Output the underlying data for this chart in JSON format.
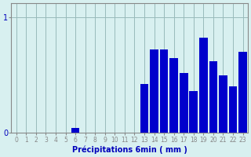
{
  "values": [
    0,
    0,
    0,
    0,
    0,
    0,
    0.04,
    0,
    0,
    0,
    0,
    0,
    0,
    0.42,
    0.72,
    0.72,
    0.65,
    0.52,
    0.36,
    0.82,
    0.62,
    0.5,
    0.4,
    0.7
  ],
  "hours": [
    0,
    1,
    2,
    3,
    4,
    5,
    6,
    7,
    8,
    9,
    10,
    11,
    12,
    13,
    14,
    15,
    16,
    17,
    18,
    19,
    20,
    21,
    22,
    23
  ],
  "bar_color": "#0000cc",
  "bg_color": "#d8f0f0",
  "grid_color": "#99bbbb",
  "axis_color": "#888888",
  "text_color": "#0000bb",
  "xlabel": "Précipitations 6min ( mm )",
  "yticks": [
    0,
    1
  ],
  "ylim": [
    0,
    1.12
  ],
  "xlim": [
    -0.5,
    23.5
  ],
  "tick_labels": [
    "0",
    "1",
    "2",
    "3",
    "4",
    "5",
    "6",
    "7",
    "8",
    "9",
    "10",
    "11",
    "12",
    "13",
    "14",
    "15",
    "16",
    "17",
    "18",
    "19",
    "20",
    "21",
    "22",
    "23"
  ],
  "label_fontsize": 7,
  "tick_fontsize": 5.5
}
